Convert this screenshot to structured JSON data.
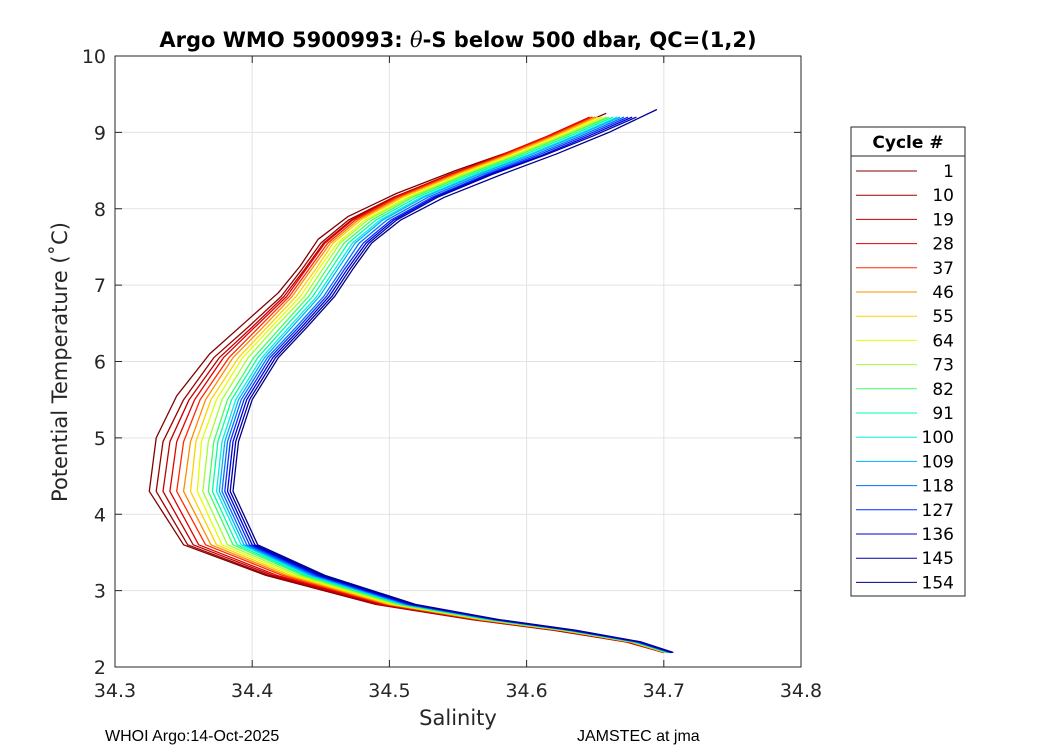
{
  "chart_data": {
    "type": "line",
    "title_parts": [
      "Argo WMO 5900993: ",
      "θ",
      "-S below 500 dbar,  QC=(1,2)"
    ],
    "xlabel": "Salinity",
    "ylabel": "Potential Temperature (˚C)",
    "xlim": [
      34.3,
      34.8
    ],
    "ylim": [
      2,
      10
    ],
    "xticks": [
      34.3,
      34.4,
      34.5,
      34.6,
      34.7,
      34.8
    ],
    "xtick_labels": [
      "34.3",
      "34.4",
      "34.5",
      "34.6",
      "34.7",
      "34.8"
    ],
    "yticks": [
      2,
      3,
      4,
      5,
      6,
      7,
      8,
      9,
      10
    ],
    "ytick_labels": [
      "2",
      "3",
      "4",
      "5",
      "6",
      "7",
      "8",
      "9",
      "10"
    ],
    "grid": true,
    "legend_title": "Cycle #",
    "legend_position": "right-outside",
    "series": [
      {
        "name": "1",
        "color": "#800000",
        "salinity": [
          34.658,
          34.625,
          34.588,
          34.548,
          34.505,
          34.47,
          34.448,
          34.435,
          34.419,
          34.394,
          34.369,
          34.345,
          34.33,
          34.325,
          34.35,
          34.41,
          34.49,
          34.56,
          34.62,
          34.672,
          34.7
        ],
        "theta": [
          9.25,
          9.0,
          8.75,
          8.5,
          8.2,
          7.9,
          7.6,
          7.25,
          6.9,
          6.5,
          6.1,
          5.55,
          5.0,
          4.3,
          3.6,
          3.2,
          2.82,
          2.62,
          2.48,
          2.33,
          2.19
        ]
      },
      {
        "name": "10",
        "color": "#9c0000",
        "salinity": [
          34.65,
          34.618,
          34.583,
          34.545,
          34.503,
          34.47,
          34.45,
          34.436,
          34.421,
          34.397,
          34.372,
          34.35,
          34.335,
          34.33,
          34.353,
          34.412,
          34.491,
          34.561,
          34.621,
          34.673,
          34.7
        ],
        "theta": [
          9.2,
          8.95,
          8.7,
          8.45,
          8.15,
          7.85,
          7.55,
          7.2,
          6.85,
          6.45,
          6.05,
          5.5,
          4.95,
          4.3,
          3.6,
          3.2,
          2.82,
          2.62,
          2.48,
          2.33,
          2.19
        ]
      },
      {
        "name": "19",
        "color": "#c00000",
        "salinity": [
          34.648,
          34.616,
          34.582,
          34.544,
          34.503,
          34.472,
          34.452,
          34.438,
          34.423,
          34.4,
          34.376,
          34.354,
          34.34,
          34.335,
          34.357,
          34.415,
          34.493,
          34.562,
          34.622,
          34.673,
          34.7
        ],
        "theta": [
          9.2,
          8.95,
          8.7,
          8.45,
          8.15,
          7.85,
          7.55,
          7.2,
          6.85,
          6.45,
          6.05,
          5.5,
          4.95,
          4.3,
          3.6,
          3.2,
          2.82,
          2.62,
          2.48,
          2.33,
          2.19
        ]
      },
      {
        "name": "28",
        "color": "#e00000",
        "salinity": [
          34.646,
          34.615,
          34.581,
          34.544,
          34.504,
          34.473,
          34.453,
          34.439,
          34.425,
          34.402,
          34.379,
          34.358,
          34.345,
          34.34,
          34.361,
          34.418,
          34.495,
          34.563,
          34.623,
          34.674,
          34.7
        ],
        "theta": [
          9.2,
          8.95,
          8.7,
          8.45,
          8.15,
          7.85,
          7.55,
          7.2,
          6.85,
          6.45,
          6.05,
          5.5,
          4.95,
          4.3,
          3.6,
          3.2,
          2.82,
          2.62,
          2.48,
          2.33,
          2.19
        ]
      },
      {
        "name": "37",
        "color": "#ff2a00",
        "salinity": [
          34.648,
          34.617,
          34.583,
          34.546,
          34.506,
          34.475,
          34.455,
          34.441,
          34.427,
          34.405,
          34.383,
          34.362,
          34.35,
          34.345,
          34.366,
          34.422,
          34.497,
          34.565,
          34.624,
          34.675,
          34.701
        ],
        "theta": [
          9.2,
          8.95,
          8.7,
          8.45,
          8.15,
          7.85,
          7.55,
          7.2,
          6.85,
          6.45,
          6.05,
          5.5,
          4.95,
          4.3,
          3.6,
          3.2,
          2.82,
          2.62,
          2.48,
          2.33,
          2.19
        ]
      },
      {
        "name": "46",
        "color": "#ff8a00",
        "salinity": [
          34.65,
          34.619,
          34.585,
          34.548,
          34.508,
          34.477,
          34.457,
          34.443,
          34.429,
          34.408,
          34.386,
          34.366,
          34.355,
          34.35,
          34.37,
          34.425,
          34.499,
          34.566,
          34.625,
          34.675,
          34.701
        ],
        "theta": [
          9.2,
          8.95,
          8.7,
          8.45,
          8.15,
          7.85,
          7.55,
          7.2,
          6.85,
          6.45,
          6.05,
          5.5,
          4.95,
          4.3,
          3.6,
          3.2,
          2.82,
          2.62,
          2.48,
          2.33,
          2.19
        ]
      },
      {
        "name": "55",
        "color": "#ffd000",
        "salinity": [
          34.652,
          34.621,
          34.587,
          34.55,
          34.51,
          34.479,
          34.459,
          34.446,
          34.432,
          34.411,
          34.39,
          34.37,
          34.359,
          34.355,
          34.374,
          34.428,
          34.501,
          34.568,
          34.626,
          34.676,
          34.702
        ],
        "theta": [
          9.2,
          8.95,
          8.7,
          8.45,
          8.15,
          7.85,
          7.55,
          7.2,
          6.85,
          6.45,
          6.05,
          5.5,
          4.95,
          4.3,
          3.6,
          3.2,
          2.82,
          2.62,
          2.48,
          2.33,
          2.19
        ]
      },
      {
        "name": "64",
        "color": "#e0ff00",
        "salinity": [
          34.655,
          34.624,
          34.59,
          34.553,
          34.513,
          34.482,
          34.462,
          34.448,
          34.435,
          34.414,
          34.393,
          34.374,
          34.363,
          34.36,
          34.378,
          34.431,
          34.503,
          34.569,
          34.627,
          34.677,
          34.702
        ],
        "theta": [
          9.2,
          8.95,
          8.7,
          8.45,
          8.15,
          7.85,
          7.55,
          7.2,
          6.85,
          6.45,
          6.05,
          5.5,
          4.95,
          4.3,
          3.6,
          3.2,
          2.82,
          2.62,
          2.48,
          2.33,
          2.19
        ]
      },
      {
        "name": "73",
        "color": "#9fff30",
        "salinity": [
          34.658,
          34.626,
          34.592,
          34.555,
          34.515,
          34.484,
          34.464,
          34.451,
          34.438,
          34.417,
          34.397,
          34.378,
          34.368,
          34.364,
          34.382,
          34.434,
          34.505,
          34.57,
          34.628,
          34.677,
          34.702
        ],
        "theta": [
          9.2,
          8.95,
          8.7,
          8.45,
          8.15,
          7.85,
          7.55,
          7.2,
          6.85,
          6.45,
          6.05,
          5.5,
          4.95,
          4.3,
          3.6,
          3.2,
          2.82,
          2.62,
          2.48,
          2.33,
          2.19
        ]
      },
      {
        "name": "82",
        "color": "#40ff60",
        "salinity": [
          34.66,
          34.628,
          34.594,
          34.557,
          34.517,
          34.487,
          34.467,
          34.454,
          34.441,
          34.421,
          34.401,
          34.382,
          34.372,
          34.368,
          34.386,
          34.437,
          34.507,
          34.571,
          34.629,
          34.678,
          34.703
        ],
        "theta": [
          9.2,
          8.95,
          8.7,
          8.45,
          8.15,
          7.85,
          7.55,
          7.2,
          6.85,
          6.45,
          6.05,
          5.5,
          4.95,
          4.3,
          3.6,
          3.2,
          2.82,
          2.62,
          2.48,
          2.33,
          2.19
        ]
      },
      {
        "name": "91",
        "color": "#00ffa0",
        "salinity": [
          34.663,
          34.631,
          34.597,
          34.56,
          34.52,
          34.49,
          34.47,
          34.457,
          34.444,
          34.424,
          34.404,
          34.385,
          34.375,
          34.371,
          34.389,
          34.439,
          34.509,
          34.573,
          34.63,
          34.678,
          34.703
        ],
        "theta": [
          9.2,
          8.95,
          8.7,
          8.45,
          8.15,
          7.85,
          7.55,
          7.2,
          6.85,
          6.45,
          6.05,
          5.5,
          4.95,
          4.3,
          3.6,
          3.2,
          2.82,
          2.62,
          2.48,
          2.33,
          2.19
        ]
      },
      {
        "name": "100",
        "color": "#00f0e0",
        "salinity": [
          34.666,
          34.634,
          34.6,
          34.563,
          34.523,
          34.493,
          34.473,
          34.46,
          34.447,
          34.427,
          34.407,
          34.388,
          34.378,
          34.374,
          34.392,
          34.441,
          34.51,
          34.574,
          34.631,
          34.679,
          34.704
        ],
        "theta": [
          9.2,
          8.95,
          8.7,
          8.45,
          8.15,
          7.85,
          7.55,
          7.2,
          6.85,
          6.45,
          6.05,
          5.5,
          4.95,
          4.3,
          3.6,
          3.2,
          2.82,
          2.62,
          2.48,
          2.33,
          2.19
        ]
      },
      {
        "name": "109",
        "color": "#00b0ff",
        "salinity": [
          34.668,
          34.636,
          34.602,
          34.565,
          34.525,
          34.495,
          34.475,
          34.462,
          34.449,
          34.429,
          34.409,
          34.39,
          34.38,
          34.376,
          34.394,
          34.443,
          34.511,
          34.575,
          34.631,
          34.679,
          34.704
        ],
        "theta": [
          9.2,
          8.95,
          8.7,
          8.45,
          8.15,
          7.85,
          7.55,
          7.2,
          6.85,
          6.45,
          6.05,
          5.5,
          4.95,
          4.3,
          3.6,
          3.2,
          2.82,
          2.62,
          2.48,
          2.33,
          2.19
        ]
      },
      {
        "name": "118",
        "color": "#0070ff",
        "salinity": [
          34.671,
          34.639,
          34.605,
          34.568,
          34.528,
          34.498,
          34.478,
          34.465,
          34.452,
          34.432,
          34.411,
          34.392,
          34.382,
          34.378,
          34.396,
          34.445,
          34.513,
          34.576,
          34.632,
          34.68,
          34.705
        ],
        "theta": [
          9.2,
          8.95,
          8.7,
          8.45,
          8.15,
          7.85,
          7.55,
          7.2,
          6.85,
          6.45,
          6.05,
          5.5,
          4.95,
          4.3,
          3.6,
          3.2,
          2.82,
          2.62,
          2.48,
          2.33,
          2.19
        ]
      },
      {
        "name": "127",
        "color": "#0030ff",
        "salinity": [
          34.674,
          34.642,
          34.608,
          34.571,
          34.531,
          34.501,
          34.481,
          34.467,
          34.454,
          34.434,
          34.413,
          34.394,
          34.384,
          34.38,
          34.398,
          34.447,
          34.514,
          34.577,
          34.633,
          34.681,
          34.705
        ],
        "theta": [
          9.2,
          8.95,
          8.7,
          8.45,
          8.15,
          7.85,
          7.55,
          7.2,
          6.85,
          6.45,
          6.05,
          5.5,
          4.95,
          4.3,
          3.6,
          3.2,
          2.82,
          2.62,
          2.48,
          2.33,
          2.19
        ]
      },
      {
        "name": "136",
        "color": "#0000d8",
        "salinity": [
          34.677,
          34.645,
          34.611,
          34.573,
          34.533,
          34.503,
          34.483,
          34.469,
          34.456,
          34.436,
          34.415,
          34.396,
          34.386,
          34.382,
          34.4,
          34.449,
          34.516,
          34.578,
          34.634,
          34.681,
          34.706
        ],
        "theta": [
          9.2,
          8.95,
          8.7,
          8.45,
          8.15,
          7.85,
          7.55,
          7.2,
          6.85,
          6.45,
          6.05,
          5.5,
          4.95,
          4.3,
          3.6,
          3.2,
          2.82,
          2.62,
          2.48,
          2.33,
          2.19
        ]
      },
      {
        "name": "145",
        "color": "#0000a8",
        "salinity": [
          34.68,
          34.648,
          34.613,
          34.575,
          34.535,
          34.505,
          34.485,
          34.471,
          34.458,
          34.438,
          34.417,
          34.398,
          34.388,
          34.384,
          34.402,
          34.451,
          34.517,
          34.579,
          34.635,
          34.682,
          34.706
        ],
        "theta": [
          9.2,
          8.95,
          8.7,
          8.45,
          8.15,
          7.85,
          7.55,
          7.2,
          6.85,
          6.45,
          6.05,
          5.5,
          4.95,
          4.3,
          3.6,
          3.2,
          2.82,
          2.62,
          2.48,
          2.33,
          2.19
        ]
      },
      {
        "name": "154",
        "color": "#00008f",
        "salinity": [
          34.695,
          34.66,
          34.622,
          34.582,
          34.54,
          34.508,
          34.487,
          34.473,
          34.46,
          34.44,
          34.419,
          34.4,
          34.39,
          34.386,
          34.404,
          34.453,
          34.519,
          34.58,
          34.636,
          34.683,
          34.707
        ],
        "theta": [
          9.3,
          9.0,
          8.72,
          8.45,
          8.15,
          7.85,
          7.55,
          7.2,
          6.85,
          6.45,
          6.05,
          5.5,
          4.95,
          4.3,
          3.6,
          3.2,
          2.82,
          2.62,
          2.48,
          2.33,
          2.19
        ]
      }
    ]
  },
  "footer": {
    "left": "WHOI Argo:14-Oct-2025",
    "right": "JAMSTEC at jma"
  }
}
